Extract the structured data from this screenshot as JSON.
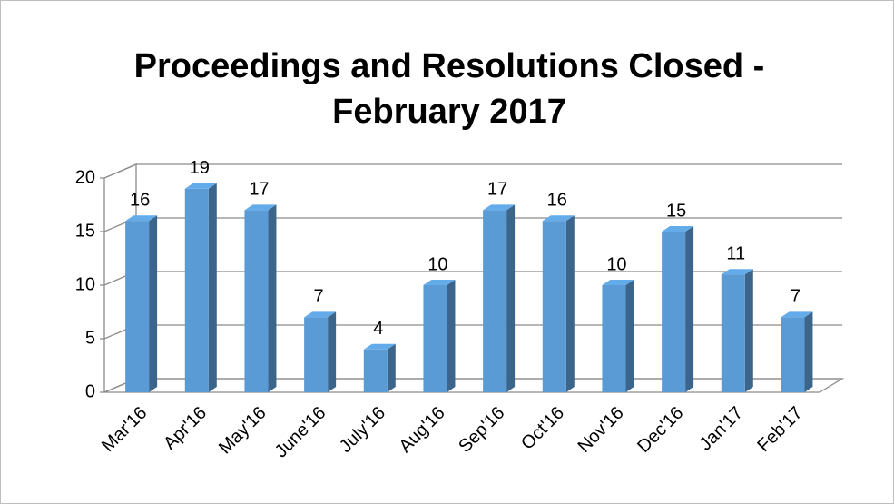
{
  "chart_data": {
    "type": "bar",
    "title": [
      "Proceedings and Resolutions Closed -",
      "February 2017"
    ],
    "categories": [
      "Mar'16",
      "Apr'16",
      "May'16",
      "June'16",
      "July'16",
      "Aug'16",
      "Sep'16",
      "Oct'16",
      "Nov'16",
      "Dec'16",
      "Jan'17",
      "Feb'17"
    ],
    "values": [
      16,
      19,
      17,
      7,
      4,
      10,
      17,
      16,
      10,
      15,
      11,
      7
    ],
    "color": "#5b9bd5",
    "ylim": [
      0,
      20
    ],
    "yticks": [
      0,
      5,
      10,
      15,
      20
    ],
    "grid": true
  }
}
